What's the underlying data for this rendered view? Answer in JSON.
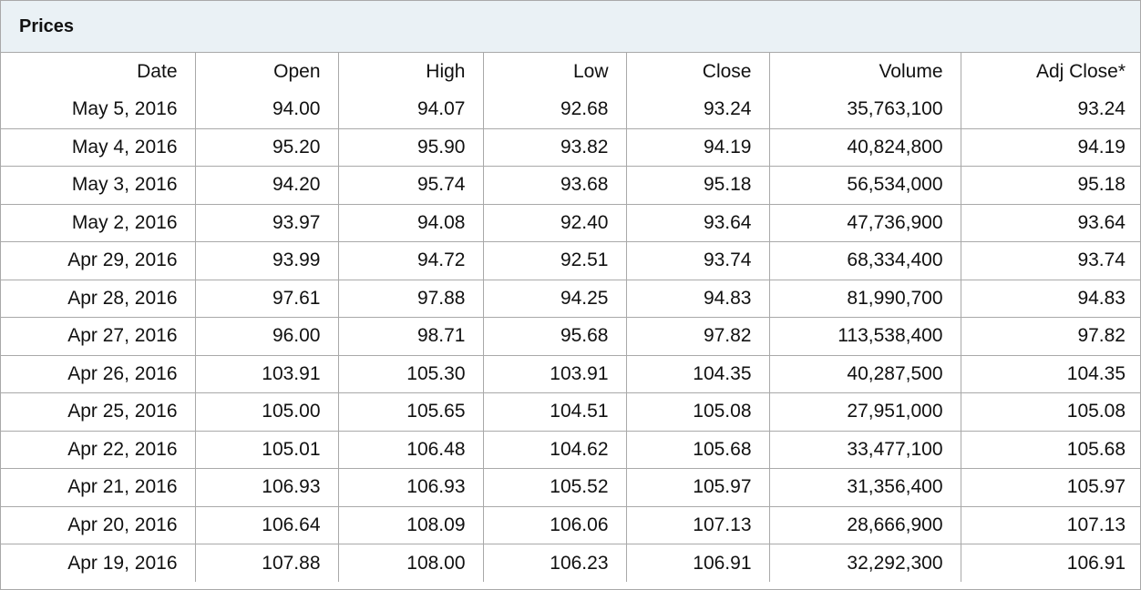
{
  "panel": {
    "title": "Prices"
  },
  "table": {
    "headers": {
      "date": "Date",
      "open": "Open",
      "high": "High",
      "low": "Low",
      "close": "Close",
      "volume": "Volume",
      "adj_close": "Adj Close*"
    },
    "rows": [
      {
        "date": "May 5, 2016",
        "open": "94.00",
        "high": "94.07",
        "low": "92.68",
        "close": "93.24",
        "volume": "35,763,100",
        "adj_close": "93.24"
      },
      {
        "date": "May 4, 2016",
        "open": "95.20",
        "high": "95.90",
        "low": "93.82",
        "close": "94.19",
        "volume": "40,824,800",
        "adj_close": "94.19"
      },
      {
        "date": "May 3, 2016",
        "open": "94.20",
        "high": "95.74",
        "low": "93.68",
        "close": "95.18",
        "volume": "56,534,000",
        "adj_close": "95.18"
      },
      {
        "date": "May 2, 2016",
        "open": "93.97",
        "high": "94.08",
        "low": "92.40",
        "close": "93.64",
        "volume": "47,736,900",
        "adj_close": "93.64"
      },
      {
        "date": "Apr 29, 2016",
        "open": "93.99",
        "high": "94.72",
        "low": "92.51",
        "close": "93.74",
        "volume": "68,334,400",
        "adj_close": "93.74"
      },
      {
        "date": "Apr 28, 2016",
        "open": "97.61",
        "high": "97.88",
        "low": "94.25",
        "close": "94.83",
        "volume": "81,990,700",
        "adj_close": "94.83"
      },
      {
        "date": "Apr 27, 2016",
        "open": "96.00",
        "high": "98.71",
        "low": "95.68",
        "close": "97.82",
        "volume": "113,538,400",
        "adj_close": "97.82"
      },
      {
        "date": "Apr 26, 2016",
        "open": "103.91",
        "high": "105.30",
        "low": "103.91",
        "close": "104.35",
        "volume": "40,287,500",
        "adj_close": "104.35"
      },
      {
        "date": "Apr 25, 2016",
        "open": "105.00",
        "high": "105.65",
        "low": "104.51",
        "close": "105.08",
        "volume": "27,951,000",
        "adj_close": "105.08"
      },
      {
        "date": "Apr 22, 2016",
        "open": "105.01",
        "high": "106.48",
        "low": "104.62",
        "close": "105.68",
        "volume": "33,477,100",
        "adj_close": "105.68"
      },
      {
        "date": "Apr 21, 2016",
        "open": "106.93",
        "high": "106.93",
        "low": "105.52",
        "close": "105.97",
        "volume": "31,356,400",
        "adj_close": "105.97"
      },
      {
        "date": "Apr 20, 2016",
        "open": "106.64",
        "high": "108.09",
        "low": "106.06",
        "close": "107.13",
        "volume": "28,666,900",
        "adj_close": "107.13"
      },
      {
        "date": "Apr 19, 2016",
        "open": "107.88",
        "high": "108.00",
        "low": "106.23",
        "close": "106.91",
        "volume": "32,292,300",
        "adj_close": "106.91"
      }
    ]
  }
}
